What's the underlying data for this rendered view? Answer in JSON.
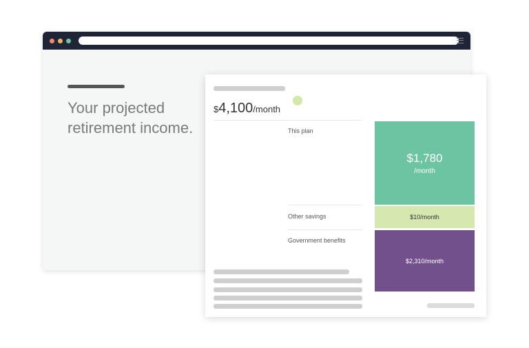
{
  "browser": {
    "dots": [
      "#f08a6a",
      "#f0b06a",
      "#6fc3a0"
    ]
  },
  "hero": {
    "heading": "Your projected retirement income."
  },
  "summary": {
    "currency": "$",
    "amount": "4,100",
    "unit": "/month"
  },
  "breakdown": [
    {
      "label": "This plan",
      "amount": "$1,780",
      "unit": "/month",
      "color": "#6dc4a3"
    },
    {
      "label": "Other savings",
      "amount": "$10/month",
      "color": "#d6e8b0"
    },
    {
      "label": "Government benefits",
      "amount": "$2,310/month",
      "color": "#72508c"
    }
  ]
}
